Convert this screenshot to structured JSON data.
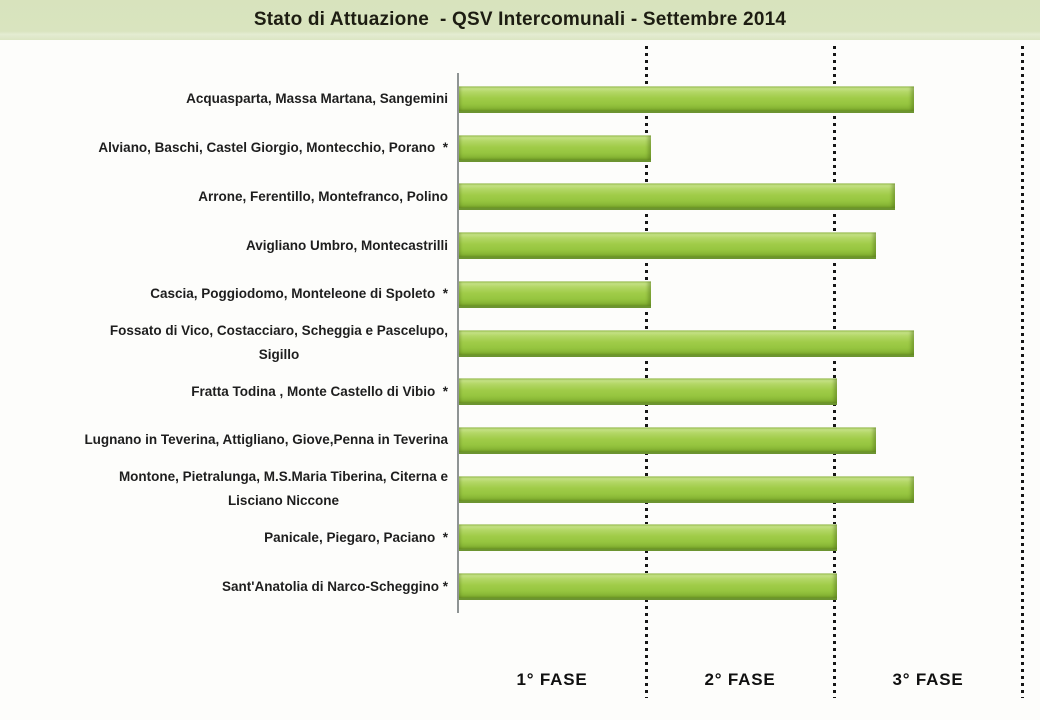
{
  "slide": {
    "title": "Stato di Attuazione  - QSV Intercomunali - Settembre 2014",
    "title_band_color": "#d9e4bf",
    "title_text_color": "#1d1d12",
    "background_color": "#fdfdfb"
  },
  "chart_data": {
    "type": "bar",
    "orientation": "horizontal",
    "title": "Stato di Attuazione - QSV Intercomunali - Settembre 2014",
    "categories": [
      "Acquasparta, Massa Martana, Sangemini",
      "Alviano, Baschi, Castel Giorgio, Montecchio, Porano  *",
      "Arrone, Ferentillo, Montefranco, Polino",
      "Avigliano Umbro, Montecastrilli",
      "Cascia, Poggiodomo, Monteleone di Spoleto  *",
      "Fossato di Vico, Costacciaro, Scheggia e Pascelupo,\nSigillo",
      "Fratta Todina , Monte Castello di Vibio  *",
      "Lugnano in Teverina, Attigliano, Giove,Penna in Teverina",
      "Montone, Pietralunga, M.S.Maria Tiberina, Citerna e\nLisciano Niccone",
      "Panicale, Piegaro, Paciano  *",
      "Sant'Anatolia di Narco-Scheggino *"
    ],
    "values": [
      2.42,
      1.02,
      2.32,
      2.22,
      1.02,
      2.42,
      2.01,
      2.22,
      2.42,
      2.01,
      2.01
    ],
    "value_axis": {
      "min": 0,
      "max": 3,
      "unit": "fase",
      "gridline_values": [
        1,
        2,
        3
      ],
      "gridline_style": "dotted",
      "gridline_color": "#161616"
    },
    "zone_labels": [
      "1° FASE",
      "2° FASE",
      "3° FASE"
    ],
    "legend": "none",
    "data_labels": "none",
    "bar_color_main": "#9cc843",
    "bar_color_highlight": "#c5e185",
    "bar_color_shadow": "#79a42c"
  }
}
